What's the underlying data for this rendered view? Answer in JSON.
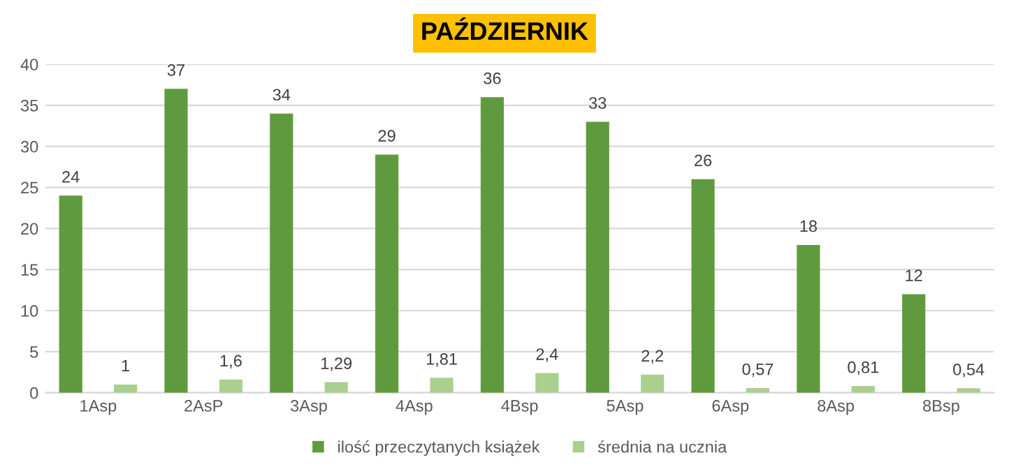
{
  "chart_data": {
    "type": "bar",
    "title": "PAŹDZIERNIK",
    "categories": [
      "1Asp",
      "2AsP",
      "3Asp",
      "4Asp",
      "4Bsp",
      "5Asp",
      "6Asp",
      "8Asp",
      "8Bsp"
    ],
    "series": [
      {
        "name": "ilość przeczytanych książek",
        "color": "#5f9b3e",
        "values": [
          24,
          37,
          34,
          29,
          36,
          33,
          26,
          18,
          12
        ],
        "value_labels": [
          "24",
          "37",
          "34",
          "29",
          "36",
          "33",
          "26",
          "18",
          "12"
        ]
      },
      {
        "name": "średnia na ucznia",
        "color": "#a9d08e",
        "values": [
          1,
          1.6,
          1.29,
          1.81,
          2.4,
          2.2,
          0.57,
          0.81,
          0.54
        ],
        "value_labels": [
          "1",
          "1,6",
          "1,29",
          "1,81",
          "2,4",
          "2,2",
          "0,57",
          "0,81",
          "0,54"
        ]
      }
    ],
    "ylim": [
      0,
      40
    ],
    "yticks": [
      0,
      5,
      10,
      15,
      20,
      25,
      30,
      35,
      40
    ],
    "grid": "y",
    "legend": "bottom"
  }
}
